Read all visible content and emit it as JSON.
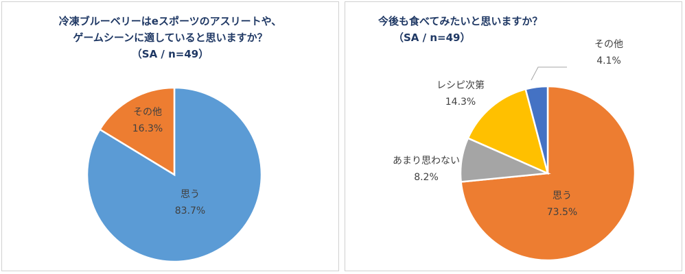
{
  "chart_data": [
    {
      "type": "pie",
      "title_lines": [
        "冷凍ブルーベリーはeスポーツのアスリートや、",
        "ゲームシーンに適していると思いますか？",
        "（SA / n=49）"
      ],
      "categories": [
        "思う",
        "その他"
      ],
      "values": [
        83.7,
        16.3
      ],
      "value_labels": [
        "83.7%",
        "16.3%"
      ],
      "colors": [
        "#5b9bd5",
        "#ed7d31"
      ],
      "start": "12 o'clock, clockwise"
    },
    {
      "type": "pie",
      "title_lines": [
        "今後も食べてみたいと思いますか？",
        "（SA / n=49）"
      ],
      "categories": [
        "思う",
        "あまり思わない",
        "レシピ次第",
        "その他"
      ],
      "values": [
        73.5,
        8.2,
        14.3,
        4.1
      ],
      "value_labels": [
        "73.5%",
        "8.2%",
        "14.3%",
        "4.1%"
      ],
      "colors": [
        "#ed7d31",
        "#a5a5a5",
        "#ffc000",
        "#4472c4"
      ],
      "start": "12 o'clock, clockwise"
    }
  ]
}
